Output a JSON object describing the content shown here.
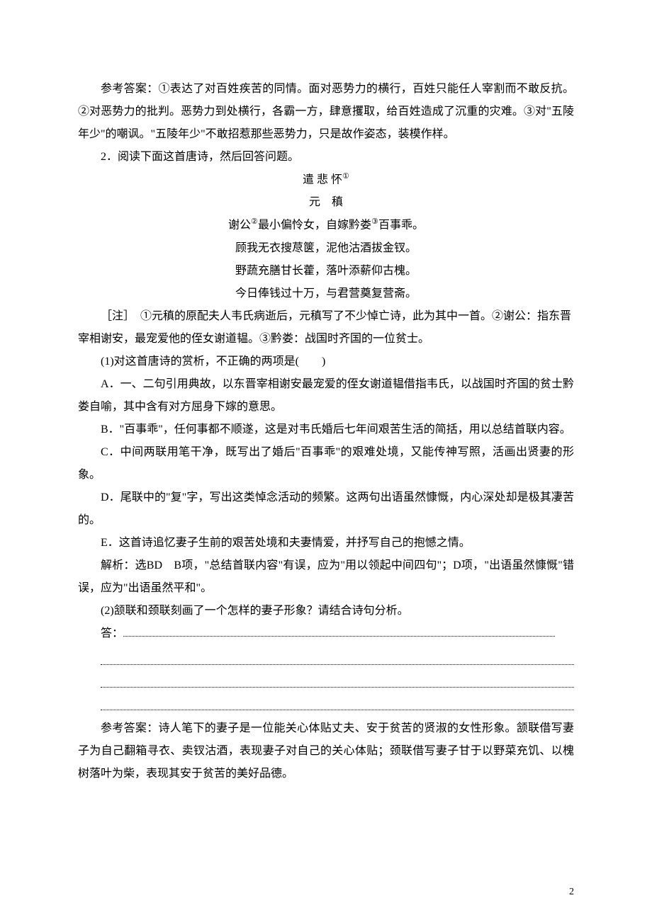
{
  "answer1": "参考答案：①表达了对百姓疾苦的同情。面对恶势力的横行，百姓只能任人宰割而不敢反抗。②对恶势力的批判。恶势力到处横行，各霸一方，肆意攫取，给百姓造成了沉重的灾难。③对\"五陵年少\"的嘲讽。\"五陵年少\"不敢招惹那些恶势力，只是故作姿态，装模作样。",
  "q2_intro": "2．阅读下面这首唐诗，然后回答问题。",
  "poem": {
    "title": "遣 悲 怀",
    "title_sup": "①",
    "author": "元　稹",
    "lines": [
      {
        "a": "谢公",
        "sup": "②",
        "b": "最小偏怜女，自嫁黔娄",
        "sup2": "③",
        "c": "百事乖。"
      },
      {
        "text": "顾我无衣搜荩箧，泥他沽酒拔金钗。"
      },
      {
        "text": "野蔬充膳甘长藿，落叶添薪仰古槐。"
      },
      {
        "text": "今日俸钱过十万，与君营奠复营斋。"
      }
    ]
  },
  "note": "［注］　①元稹的原配夫人韦氏病逝后，元稹写了不少悼亡诗，此为其中一首。②谢公：指东晋宰相谢安，最宠爱他的侄女谢道韫。③黔娄：战国时齐国的一位贫士。",
  "q2_1": "(1)对这首唐诗的赏析，不正确的两项是(　　)",
  "options": [
    "A．一、二句引用典故，以东晋宰相谢安最宠爱的侄女谢道韫借指韦氏，以战国时齐国的贫士黔娄自喻，其中含有对方屈身下嫁的意思。",
    "B．\"百事乖\"，任何事都不顺遂，这是对韦氏婚后七年间艰苦生活的简括，用以总结首联内容。",
    "C．中间两联用笔干净，既写出了婚后\"百事乖\"的艰难处境，又能传神写照，活画出贤妻的形象。",
    "D．尾联中的\"复\"字，写出这类悼念活动的频繁。这两句出语虽然慷慨，内心深处却是极其凄苦的。",
    "E．这首诗追忆妻子生前的艰苦处境和夫妻情爱，并抒写自己的抱憾之情。"
  ],
  "q2_1_ans": "解析：选BD　B项，\"总结首联内容\"有误，应为\"用以领起中间四句\"；D项，\"出语虽然慷慨\"错误，应为\"出语虽然平和\"。",
  "q2_2": "(2)颔联和颈联刻画了一个怎样的妻子形象？请结合诗句分析。",
  "answer_label": "答：",
  "answer2": "参考答案：诗人笔下的妻子是一位能关心体贴丈夫、安于贫苦的贤淑的女性形象。颔联借写妻子为自己翻箱寻衣、卖钗沽酒，表现妻子对自己的关心体贴；颈联借写妻子甘于以野菜充饥、以槐树落叶为柴，表现其安于贫苦的美好品德。",
  "page_number": "2"
}
